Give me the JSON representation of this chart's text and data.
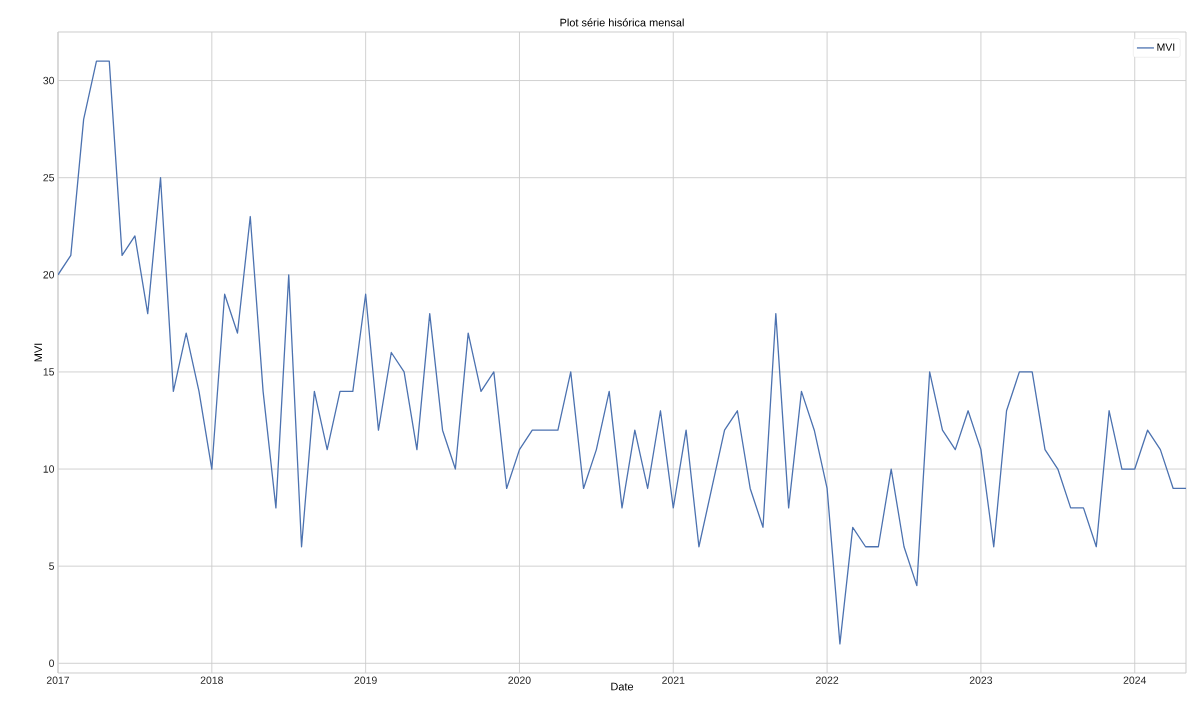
{
  "chart_data": {
    "type": "line",
    "title": "Plot série hisórica mensal",
    "xlabel": "Date",
    "ylabel": "MVI",
    "x": [
      "2017-01",
      "2017-02",
      "2017-03",
      "2017-04",
      "2017-05",
      "2017-06",
      "2017-07",
      "2017-08",
      "2017-09",
      "2017-10",
      "2017-11",
      "2017-12",
      "2018-01",
      "2018-02",
      "2018-03",
      "2018-04",
      "2018-05",
      "2018-06",
      "2018-07",
      "2018-08",
      "2018-09",
      "2018-10",
      "2018-11",
      "2018-12",
      "2019-01",
      "2019-02",
      "2019-03",
      "2019-04",
      "2019-05",
      "2019-06",
      "2019-07",
      "2019-08",
      "2019-09",
      "2019-10",
      "2019-11",
      "2019-12",
      "2020-01",
      "2020-02",
      "2020-03",
      "2020-04",
      "2020-05",
      "2020-06",
      "2020-07",
      "2020-08",
      "2020-09",
      "2020-10",
      "2020-11",
      "2020-12",
      "2021-01",
      "2021-02",
      "2021-03",
      "2021-04",
      "2021-05",
      "2021-06",
      "2021-07",
      "2021-08",
      "2021-09",
      "2021-10",
      "2021-11",
      "2021-12",
      "2022-01",
      "2022-02",
      "2022-03",
      "2022-04",
      "2022-05",
      "2022-06",
      "2022-07",
      "2022-08",
      "2022-09",
      "2022-10",
      "2022-11",
      "2022-12",
      "2023-01",
      "2023-02",
      "2023-03",
      "2023-04",
      "2023-05",
      "2023-06",
      "2023-07",
      "2023-08",
      "2023-09",
      "2023-10",
      "2023-11",
      "2023-12",
      "2024-01",
      "2024-02",
      "2024-03",
      "2024-04",
      "2024-05"
    ],
    "series": [
      {
        "name": "MVI",
        "color": "#4c72b0",
        "values": [
          20,
          21,
          28,
          31,
          31,
          21,
          22,
          18,
          25,
          14,
          17,
          14,
          10,
          19,
          17,
          23,
          14,
          8,
          20,
          6,
          14,
          11,
          14,
          14,
          19,
          12,
          16,
          15,
          11,
          18,
          12,
          10,
          17,
          14,
          15,
          9,
          11,
          12,
          12,
          12,
          15,
          9,
          11,
          14,
          8,
          12,
          9,
          13,
          8,
          12,
          6,
          9,
          12,
          13,
          9,
          7,
          18,
          8,
          14,
          12,
          9,
          1,
          7,
          6,
          6,
          10,
          6,
          4,
          15,
          12,
          11,
          13,
          11,
          6,
          13,
          15,
          15,
          11,
          10,
          8,
          8,
          6,
          13,
          10,
          10,
          12,
          11,
          9,
          9
        ]
      }
    ],
    "xlim": [
      "2017-01",
      "2024-05"
    ],
    "xticks": [
      {
        "value": "2017-01",
        "label": "2017"
      },
      {
        "value": "2018-01",
        "label": "2018"
      },
      {
        "value": "2019-01",
        "label": "2019"
      },
      {
        "value": "2020-01",
        "label": "2020"
      },
      {
        "value": "2021-01",
        "label": "2021"
      },
      {
        "value": "2022-01",
        "label": "2022"
      },
      {
        "value": "2023-01",
        "label": "2023"
      },
      {
        "value": "2024-01",
        "label": "2024"
      }
    ],
    "ylim": [
      -0.5,
      32.5
    ],
    "yticks": [
      0,
      5,
      10,
      15,
      20,
      25,
      30
    ],
    "grid": true,
    "legend": "top right",
    "marker": "none",
    "line_style": "solid"
  }
}
